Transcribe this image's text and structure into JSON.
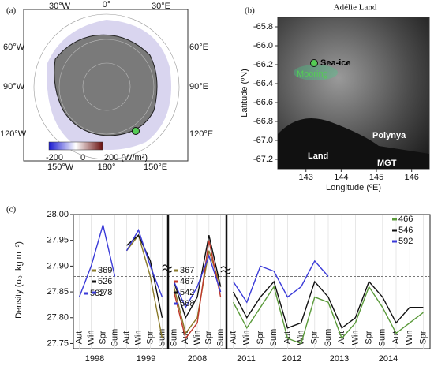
{
  "maps": {
    "a": {
      "panel": "(a)",
      "lon_labels": [
        "30°W",
        "0°",
        "30°E",
        "60°W",
        "60°E",
        "90°W",
        "90°E",
        "120°W",
        "120°E",
        "150°W",
        "180°",
        "150°E"
      ],
      "colorbar": [
        "-200",
        "0",
        "200 (W/m²)"
      ]
    },
    "b": {
      "panel": "(b)",
      "title": "Adélie Land",
      "ylabel": "Latitude (ºN)",
      "xlabel": "Longitude (ºE)",
      "ylim": [
        -65.7,
        -67.3
      ],
      "yticks": [
        {
          "value": -65.8,
          "label": "-65.8"
        },
        {
          "value": -66.0,
          "label": "-66.0"
        },
        {
          "value": -66.2,
          "label": "-66.2"
        },
        {
          "value": -66.4,
          "label": "-66.4"
        },
        {
          "value": -66.6,
          "label": "-66.6"
        },
        {
          "value": -66.8,
          "label": "-66.8"
        },
        {
          "value": -67.0,
          "label": "-67.0"
        },
        {
          "value": -67.2,
          "label": "-67.2"
        }
      ],
      "xlim": [
        142.2,
        146.5
      ],
      "xticks": [
        143,
        144,
        145,
        146
      ],
      "annotations": [
        "Sea-ice",
        "Mooring",
        "Polynya",
        "Land",
        "MGT"
      ]
    }
  },
  "chart_data": {
    "type": "line",
    "panel": "(c)",
    "ylabel": "Density (σ₀, kg m⁻³)",
    "categories": [
      "Aut",
      "Win",
      "Spr",
      "Sum",
      "Aut",
      "Win",
      "Spr",
      "Sum",
      "Sum",
      "Aut",
      "Win",
      "Spr",
      "Sum",
      "Aut",
      "Win",
      "Spr",
      "Sum",
      "Aut",
      "Win",
      "Spr",
      "Sum",
      "Aut",
      "Win",
      "Spr",
      "Sum",
      "Aut",
      "Win",
      "Spr"
    ],
    "years": [
      "1998",
      "1999",
      "2008",
      "2011",
      "2012",
      "2013",
      "2014"
    ],
    "ylim": [
      27.74,
      28.0
    ],
    "yticks": [
      27.75,
      {
        "value": 27.8,
        "label": "27.80"
      },
      27.85,
      {
        "value": 27.9,
        "label": "27.90"
      },
      27.95,
      {
        "value": 28.0,
        "label": "28.00"
      }
    ],
    "reference_line": 27.88,
    "series": [
      {
        "name": "582",
        "color": "#3a3ad8",
        "values": [
          27.84,
          27.9,
          27.98,
          27.88,
          null,
          null,
          null,
          null,
          null,
          null,
          null,
          null,
          null,
          null,
          null,
          null,
          null,
          null,
          null,
          null,
          null,
          null,
          null,
          null,
          null,
          null,
          null,
          null
        ]
      },
      {
        "name": "369",
        "color": "#8a7a2a",
        "values": [
          null,
          null,
          null,
          null,
          27.93,
          27.96,
          27.88,
          27.76,
          null,
          null,
          null,
          null,
          null,
          null,
          null,
          null,
          null,
          null,
          null,
          null,
          null,
          null,
          null,
          null,
          null,
          null,
          null,
          null
        ]
      },
      {
        "name": "526",
        "color": "#111111",
        "values": [
          null,
          null,
          null,
          null,
          27.94,
          27.96,
          27.91,
          27.8,
          null,
          null,
          null,
          null,
          null,
          null,
          null,
          null,
          null,
          null,
          null,
          null,
          null,
          null,
          null,
          null,
          null,
          null,
          null,
          null
        ]
      },
      {
        "name": "578",
        "color": "#3a3ad8",
        "values": [
          null,
          null,
          null,
          null,
          27.93,
          27.97,
          27.9,
          27.84,
          null,
          null,
          null,
          null,
          null,
          null,
          null,
          null,
          null,
          null,
          null,
          null,
          null,
          null,
          null,
          null,
          null,
          null,
          null,
          null
        ]
      },
      {
        "name": "367",
        "color": "#8a7a2a",
        "values": [
          null,
          null,
          null,
          null,
          null,
          null,
          null,
          null,
          27.86,
          27.77,
          27.8,
          27.93,
          27.86,
          null,
          null,
          null,
          null,
          null,
          null,
          null,
          null,
          null,
          null,
          null,
          null,
          null,
          null,
          null
        ]
      },
      {
        "name": "467",
        "color": "#c0392b",
        "values": [
          null,
          null,
          null,
          null,
          null,
          null,
          null,
          null,
          27.85,
          27.76,
          27.79,
          27.95,
          27.84,
          null,
          null,
          null,
          null,
          null,
          null,
          null,
          null,
          null,
          null,
          null,
          null,
          null,
          null,
          null
        ]
      },
      {
        "name": "542",
        "color": "#111111",
        "values": [
          null,
          null,
          null,
          null,
          null,
          null,
          null,
          null,
          27.87,
          27.8,
          27.84,
          27.96,
          27.86,
          null,
          null,
          null,
          null,
          null,
          null,
          null,
          null,
          null,
          null,
          null,
          null,
          null,
          null,
          null
        ]
      },
      {
        "name": "568",
        "color": "#3a3ad8",
        "values": [
          null,
          null,
          null,
          null,
          null,
          null,
          null,
          null,
          27.87,
          27.82,
          27.86,
          27.92,
          27.85,
          null,
          null,
          null,
          null,
          null,
          null,
          null,
          null,
          null,
          null,
          null,
          null,
          null,
          null,
          null
        ]
      },
      {
        "name": "466",
        "color": "#5a9a3a",
        "values": [
          null,
          null,
          null,
          null,
          null,
          null,
          null,
          null,
          null,
          null,
          null,
          null,
          null,
          27.83,
          27.78,
          27.82,
          27.86,
          27.76,
          27.75,
          27.84,
          27.83,
          27.76,
          27.79,
          27.86,
          27.82,
          27.77,
          27.79,
          27.81
        ]
      },
      {
        "name": "546",
        "color": "#111111",
        "values": [
          null,
          null,
          null,
          null,
          null,
          null,
          null,
          null,
          null,
          null,
          null,
          null,
          null,
          27.85,
          27.8,
          27.84,
          27.87,
          27.78,
          27.79,
          27.87,
          27.84,
          27.78,
          27.8,
          27.87,
          27.84,
          27.79,
          27.82,
          27.82
        ]
      },
      {
        "name": "592",
        "color": "#3a3ad8",
        "values": [
          null,
          null,
          null,
          null,
          null,
          null,
          null,
          null,
          null,
          null,
          null,
          null,
          null,
          27.87,
          27.83,
          27.9,
          27.89,
          27.84,
          27.86,
          27.91,
          27.88,
          null,
          null,
          null,
          null,
          null,
          null,
          null
        ]
      }
    ]
  }
}
